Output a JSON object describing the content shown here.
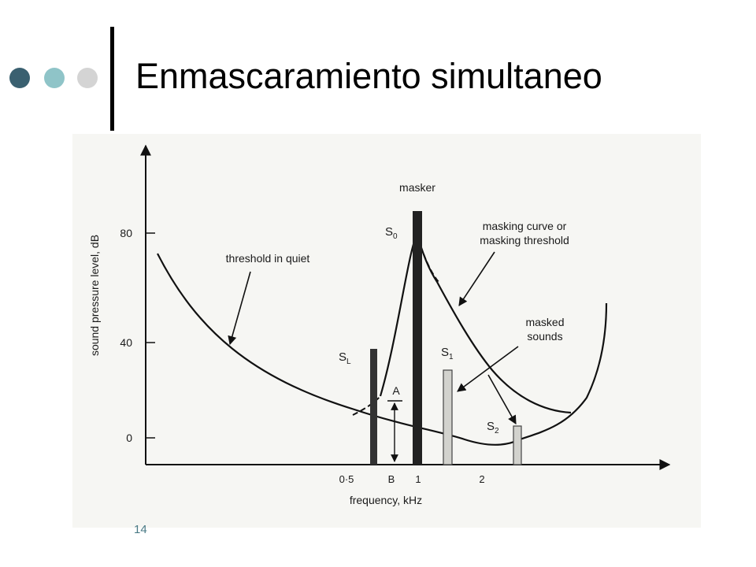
{
  "slide": {
    "title": "Enmascaramiento simultaneo",
    "page_number": "14"
  },
  "diagram": {
    "y_axis_label": "sound pressure level, dB",
    "x_axis_label": "frequency, kHz",
    "y_ticks": [
      "80",
      "40",
      "0"
    ],
    "x_ticks": [
      "0·5",
      "B",
      "1",
      "2"
    ],
    "labels": {
      "masker": "masker",
      "threshold_quiet": "threshold in quiet",
      "masking_curve_1": "masking curve or",
      "masking_curve_2": "masking threshold",
      "masked_1": "masked",
      "masked_2": "sounds",
      "A": "A"
    },
    "tone_labels": {
      "S0": {
        "base": "S",
        "sub": "0"
      },
      "SL": {
        "base": "S",
        "sub": "L"
      },
      "S1": {
        "base": "S",
        "sub": "1"
      },
      "S2": {
        "base": "S",
        "sub": "2"
      }
    }
  }
}
